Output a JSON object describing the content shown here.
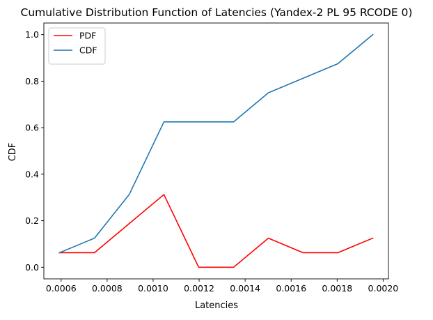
{
  "chart_data": {
    "type": "line",
    "title": "Cumulative Distribution Function of Latencies (Yandex-2 PL 95 RCODE 0)",
    "xlabel": "Latencies",
    "ylabel": "CDF",
    "x": [
      0.000593,
      0.000745,
      0.000896,
      0.001047,
      0.001198,
      0.00135,
      0.001501,
      0.001652,
      0.001803,
      0.001955
    ],
    "series": [
      {
        "name": "PDF",
        "color": "#ff0000",
        "values": [
          0.0625,
          0.0625,
          0.1875,
          0.3125,
          0.0,
          0.0,
          0.125,
          0.0625,
          0.0625,
          0.125
        ]
      },
      {
        "name": "CDF",
        "color": "#1f77b4",
        "values": [
          0.0625,
          0.125,
          0.3125,
          0.625,
          0.625,
          0.625,
          0.75,
          0.8125,
          0.875,
          1.0
        ]
      }
    ],
    "xlim": [
      0.000525,
      0.002023
    ],
    "ylim": [
      -0.05,
      1.05
    ],
    "xticks": [
      0.0006,
      0.0008,
      0.001,
      0.0012,
      0.0014,
      0.0016,
      0.0018,
      0.002
    ],
    "xtick_labels": [
      "0.0006",
      "0.0008",
      "0.0010",
      "0.0012",
      "0.0014",
      "0.0016",
      "0.0018",
      "0.0020"
    ],
    "yticks": [
      0.0,
      0.2,
      0.4,
      0.6,
      0.8,
      1.0
    ],
    "ytick_labels": [
      "0.0",
      "0.2",
      "0.4",
      "0.6",
      "0.8",
      "1.0"
    ],
    "grid": false,
    "legend_position": "top-left"
  }
}
